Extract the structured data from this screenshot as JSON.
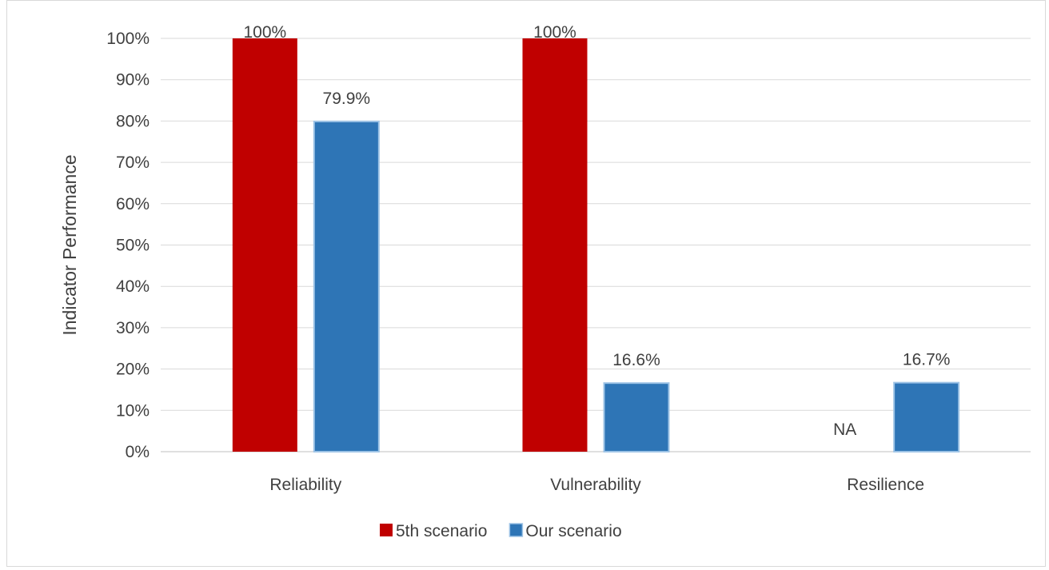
{
  "chart_data": {
    "type": "bar",
    "title": "",
    "xlabel": "",
    "ylabel": "Indicator Performance",
    "ylim": [
      0,
      100
    ],
    "ytick_step": 10,
    "ytick_format": "percent",
    "grid": true,
    "legend_position": "bottom",
    "categories": [
      "Reliability",
      "Vulnerability",
      "Resilience"
    ],
    "series": [
      {
        "name": "5th scenario",
        "color": "#c00000",
        "values": [
          100,
          100,
          null
        ],
        "labels": [
          "100%",
          "100%",
          "NA"
        ]
      },
      {
        "name": "Our scenario",
        "color": "#2e75b6",
        "values": [
          79.9,
          16.6,
          16.7
        ],
        "labels": [
          "79.9%",
          "16.6%",
          "16.7%"
        ]
      }
    ]
  }
}
